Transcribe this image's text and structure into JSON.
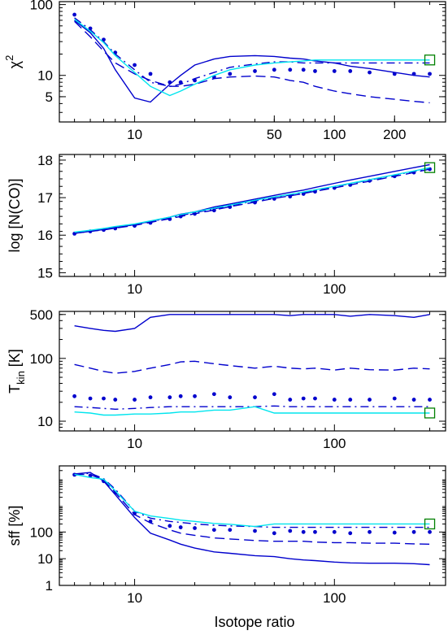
{
  "figure": {
    "xlabel": "Isotope ratio",
    "colors": {
      "blue": "#0000cd",
      "cyan": "#00e5ee",
      "marker": "#008000",
      "axes": "#000000"
    }
  },
  "chart_data": [
    {
      "type": "line",
      "id": "chi2",
      "ylabel": "χ",
      "ylabel_sup": "2",
      "xscale": "log",
      "yscale": "log",
      "xlim": [
        4.2,
        360
      ],
      "ylim": [
        2.2,
        110
      ],
      "xticks": [
        10,
        50,
        100,
        200
      ],
      "xtick_labels": [
        "10",
        "50",
        "100",
        "200"
      ],
      "yticks": [
        5,
        10,
        100
      ],
      "ytick_labels": [
        "5",
        "10",
        "100"
      ],
      "x": [
        5,
        6,
        7,
        8,
        10,
        12,
        15,
        17,
        20,
        25,
        30,
        40,
        50,
        60,
        70,
        80,
        100,
        120,
        150,
        200,
        250,
        300
      ],
      "series": [
        {
          "style": "solid",
          "color": "blue",
          "y": [
            60,
            40,
            24,
            12,
            4.8,
            4.2,
            7.5,
            10,
            14,
            17,
            18.5,
            19,
            18.5,
            17.5,
            17,
            16,
            15,
            13.5,
            12.5,
            11,
            10,
            9.5
          ]
        },
        {
          "style": "dashed",
          "color": "blue",
          "y": [
            58,
            35,
            22,
            15,
            10.5,
            8.5,
            7,
            7,
            7.5,
            9,
            9.5,
            9.8,
            9.5,
            8.5,
            8,
            7,
            6,
            5.5,
            5,
            4.6,
            4.3,
            4.1
          ]
        },
        {
          "style": "dotted",
          "color": "blue",
          "y": [
            72,
            46,
            32,
            21,
            14,
            10.5,
            8,
            8,
            8.5,
            9.5,
            10.5,
            11.5,
            12,
            12,
            12,
            11.5,
            11.5,
            11.5,
            11,
            10.5,
            10.5,
            10.5
          ]
        },
        {
          "style": "dashdot",
          "color": "blue",
          "y": [
            65,
            44,
            30,
            20,
            12,
            8,
            7,
            7.5,
            9,
            11,
            13,
            14.5,
            15.5,
            15.5,
            15,
            15,
            15,
            15,
            15,
            15,
            15,
            15
          ]
        },
        {
          "style": "solid",
          "color": "cyan",
          "y": [
            62,
            42,
            29,
            19,
            11,
            7,
            5.2,
            6,
            7.5,
            10,
            12,
            14,
            15,
            15.5,
            16,
            16.5,
            16.5,
            16.5,
            16.5,
            16.5,
            16.5,
            16.5
          ]
        }
      ],
      "marker": {
        "shape": "square",
        "x": 300,
        "y": 16.5
      }
    },
    {
      "type": "line",
      "id": "ncol",
      "ylabel": "log [N(CO)]",
      "xscale": "log",
      "yscale": "linear",
      "xlim": [
        4.2,
        360
      ],
      "ylim": [
        14.9,
        18.15
      ],
      "xticks": [
        10,
        100
      ],
      "xtick_labels": [
        "10",
        "100"
      ],
      "yticks": [
        15,
        16,
        17,
        18
      ],
      "ytick_labels": [
        "15",
        "16",
        "17",
        "18"
      ],
      "x": [
        5,
        6,
        7,
        8,
        10,
        12,
        15,
        17,
        20,
        25,
        30,
        40,
        50,
        60,
        70,
        80,
        100,
        120,
        150,
        200,
        250,
        300
      ],
      "series": [
        {
          "style": "solid",
          "color": "blue",
          "y": [
            16.05,
            16.1,
            16.15,
            16.2,
            16.28,
            16.37,
            16.48,
            16.56,
            16.62,
            16.75,
            16.83,
            16.96,
            17.06,
            17.14,
            17.2,
            17.27,
            17.38,
            17.47,
            17.57,
            17.7,
            17.8,
            17.88
          ]
        },
        {
          "style": "dashed",
          "color": "blue",
          "y": [
            16.05,
            16.1,
            16.14,
            16.19,
            16.26,
            16.34,
            16.44,
            16.5,
            16.57,
            16.67,
            16.76,
            16.88,
            16.98,
            17.05,
            17.11,
            17.17,
            17.26,
            17.34,
            17.44,
            17.57,
            17.67,
            17.76
          ]
        },
        {
          "style": "dotted",
          "color": "blue",
          "y": [
            16.04,
            16.1,
            16.14,
            16.18,
            16.25,
            16.33,
            16.43,
            16.5,
            16.57,
            16.66,
            16.75,
            16.87,
            16.97,
            17.03,
            17.1,
            17.16,
            17.26,
            17.34,
            17.45,
            17.57,
            17.67,
            17.76
          ]
        },
        {
          "style": "dashdot",
          "color": "blue",
          "y": [
            16.06,
            16.12,
            16.16,
            16.21,
            16.28,
            16.36,
            16.46,
            16.52,
            16.6,
            16.7,
            16.79,
            16.91,
            17.0,
            17.07,
            17.13,
            17.19,
            17.29,
            17.37,
            17.47,
            17.6,
            17.7,
            17.79
          ]
        },
        {
          "style": "solid",
          "color": "cyan",
          "y": [
            16.08,
            16.13,
            16.18,
            16.23,
            16.3,
            16.38,
            16.48,
            16.55,
            16.62,
            16.72,
            16.8,
            16.93,
            17.02,
            17.09,
            17.15,
            17.21,
            17.3,
            17.38,
            17.48,
            17.61,
            17.71,
            17.8
          ]
        }
      ],
      "marker": {
        "shape": "square",
        "x": 300,
        "y": 17.8
      }
    },
    {
      "type": "line",
      "id": "tkin",
      "ylabel": "T",
      "ylabel_sub": "kin",
      "ylabel_suffix": " [K]",
      "xscale": "log",
      "yscale": "log",
      "xlim": [
        4.2,
        360
      ],
      "ylim": [
        7,
        560
      ],
      "xticks": [
        10,
        100
      ],
      "xtick_labels": [
        "10",
        "100"
      ],
      "yticks": [
        10,
        100,
        500
      ],
      "ytick_labels": [
        "10",
        "100",
        "500"
      ],
      "x": [
        5,
        6,
        7,
        8,
        10,
        12,
        15,
        17,
        20,
        25,
        30,
        40,
        50,
        60,
        70,
        80,
        100,
        120,
        150,
        200,
        250,
        300
      ],
      "series": [
        {
          "style": "solid",
          "color": "blue",
          "y": [
            330,
            300,
            280,
            270,
            300,
            450,
            500,
            500,
            500,
            500,
            500,
            500,
            500,
            480,
            500,
            500,
            500,
            470,
            500,
            480,
            450,
            500
          ]
        },
        {
          "style": "dashed",
          "color": "blue",
          "y": [
            80,
            70,
            62,
            58,
            62,
            70,
            80,
            88,
            90,
            82,
            77,
            70,
            75,
            70,
            68,
            70,
            65,
            70,
            66,
            65,
            70,
            68
          ]
        },
        {
          "style": "dotted",
          "color": "blue",
          "y": [
            25,
            23,
            23,
            22,
            22,
            24,
            24,
            25,
            25,
            27,
            24,
            24,
            27,
            22,
            23,
            23,
            22,
            22,
            22,
            23,
            22,
            22
          ]
        },
        {
          "style": "dashdot",
          "color": "blue",
          "y": [
            17,
            16.5,
            16,
            15.5,
            16,
            16.5,
            17,
            17,
            17,
            17,
            17,
            17,
            17.5,
            17,
            17,
            17,
            17,
            17,
            17,
            17,
            17,
            17
          ]
        },
        {
          "style": "solid",
          "color": "cyan",
          "y": [
            14,
            13.5,
            12.5,
            12.5,
            13,
            13,
            13.5,
            14,
            14,
            15,
            15,
            17,
            13.5,
            13.5,
            13.5,
            13.5,
            13.5,
            13.5,
            13.5,
            13.5,
            13.5,
            13.5
          ]
        }
      ],
      "marker": {
        "shape": "square",
        "x": 300,
        "y": 13.5
      }
    },
    {
      "type": "line",
      "id": "sff",
      "ylabel": "sff [%]",
      "xscale": "log",
      "yscale": "log",
      "xlim": [
        4.2,
        360
      ],
      "ylim": [
        1,
        30000
      ],
      "xticks": [
        10,
        100
      ],
      "xtick_labels": [
        "10",
        "100"
      ],
      "yticks": [
        1,
        10,
        100
      ],
      "ytick_labels": [
        "1",
        "10",
        "100"
      ],
      "x": [
        5,
        6,
        7,
        8,
        10,
        12,
        15,
        17,
        20,
        25,
        30,
        40,
        50,
        60,
        70,
        80,
        100,
        120,
        150,
        200,
        250,
        300
      ],
      "series": [
        {
          "style": "solid",
          "color": "blue",
          "y": [
            15000,
            17000,
            8000,
            2500,
            350,
            90,
            50,
            35,
            25,
            18,
            16,
            13,
            12,
            10,
            9,
            8.5,
            7.5,
            7,
            6.8,
            6.8,
            6.5,
            6
          ]
        },
        {
          "style": "dashed",
          "color": "blue",
          "y": [
            15000,
            14000,
            9000,
            3000,
            450,
            220,
            120,
            90,
            75,
            60,
            55,
            48,
            45,
            45,
            45,
            42,
            40,
            40,
            38,
            38,
            36,
            35
          ]
        },
        {
          "style": "dotted",
          "color": "blue",
          "y": [
            14000,
            13000,
            8000,
            3000,
            500,
            250,
            170,
            150,
            140,
            120,
            120,
            110,
            90,
            110,
            100,
            100,
            100,
            90,
            100,
            95,
            100,
            100
          ]
        },
        {
          "style": "dashdot",
          "color": "blue",
          "y": [
            13500,
            16000,
            10000,
            4000,
            600,
            330,
            250,
            230,
            200,
            180,
            170,
            160,
            150,
            150,
            150,
            150,
            150,
            150,
            150,
            150,
            150,
            150
          ]
        },
        {
          "style": "solid",
          "color": "cyan",
          "y": [
            14500,
            11000,
            9500,
            3500,
            600,
            400,
            320,
            280,
            250,
            210,
            195,
            160,
            200,
            200,
            200,
            200,
            200,
            200,
            200,
            200,
            200,
            200
          ]
        }
      ],
      "marker": {
        "shape": "square",
        "x": 300,
        "y": 200
      }
    }
  ]
}
